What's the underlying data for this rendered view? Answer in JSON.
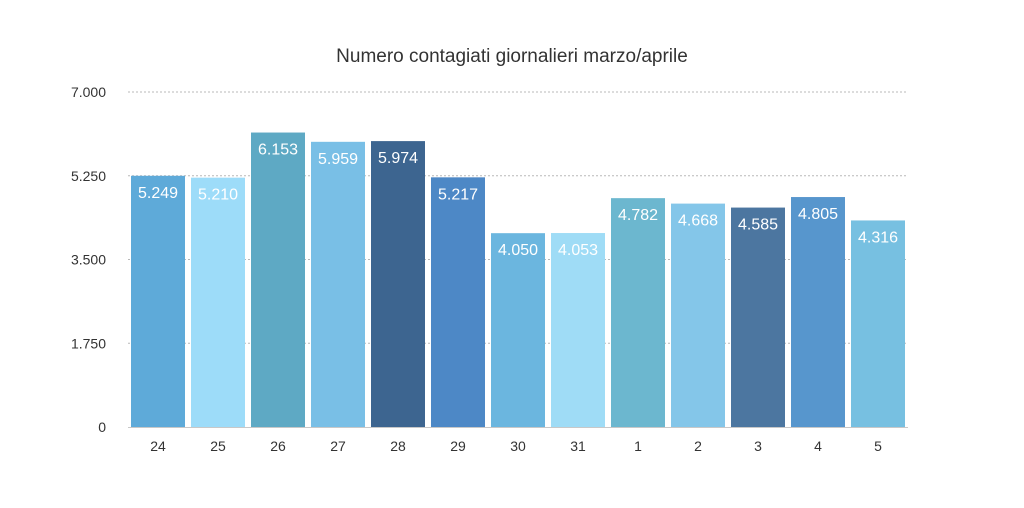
{
  "chart_data": {
    "type": "bar",
    "title": "Numero contagiati giornalieri marzo/aprile",
    "xlabel": "",
    "ylabel": "",
    "categories": [
      "24",
      "25",
      "26",
      "27",
      "28",
      "29",
      "30",
      "31",
      "1",
      "2",
      "3",
      "4",
      "5"
    ],
    "values": [
      5249,
      5210,
      6153,
      5959,
      5974,
      5217,
      4050,
      4053,
      4782,
      4668,
      4585,
      4805,
      4316
    ],
    "value_labels": [
      "5.249",
      "5.210",
      "6.153",
      "5.959",
      "5.974",
      "5.217",
      "4.050",
      "4.053",
      "4.782",
      "4.668",
      "4.585",
      "4.805",
      "4.316"
    ],
    "ylim": [
      0,
      7000
    ],
    "yticks": [
      0,
      1750,
      3500,
      5250,
      7000
    ],
    "ytick_labels": [
      "0",
      "1.750",
      "3.500",
      "5.250",
      "7.000"
    ],
    "grid": true,
    "legend": "none",
    "bar_colors": [
      "#5eaad9",
      "#9ddcf9",
      "#5ea9c4",
      "#79bfe6",
      "#3d6590",
      "#4d88c6",
      "#6bb6df",
      "#9fdcf6",
      "#6cb7cf",
      "#84c6e9",
      "#4c76a0",
      "#5796cd",
      "#77c0e1"
    ]
  }
}
